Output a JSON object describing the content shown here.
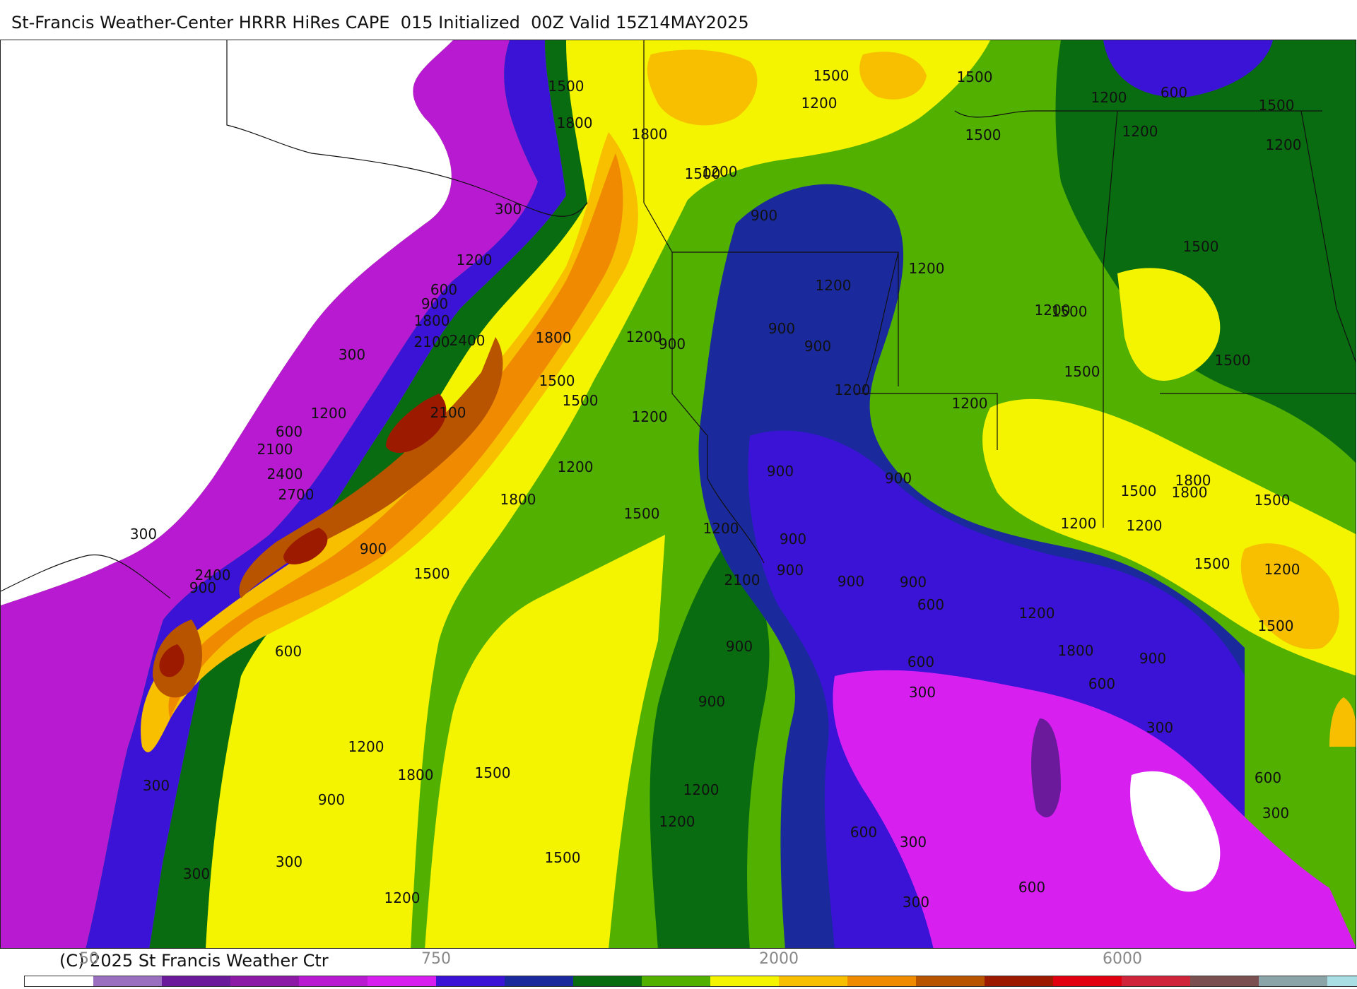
{
  "title": "St-Francis Weather-Center HRRR HiRes CAPE  015 Initialized  00Z Valid 15Z14MAY2025",
  "copyright": "(C) 2025 St Francis Weather Ctr",
  "legend_ticks": [
    "50",
    "750",
    "2000",
    "6000"
  ],
  "colorbar_colors": [
    "#ffffff",
    "#9a6fc0",
    "#6a1a9a",
    "#8c1aa6",
    "#b71ad0",
    "#d71ff0",
    "#3a13d6",
    "#1a2a9c",
    "#0a6c10",
    "#52b000",
    "#f4f400",
    "#f7bf00",
    "#f08a00",
    "#b85400",
    "#9c1a00",
    "#e10010",
    "#d0243a",
    "#7a5050",
    "#8aa4a8",
    "#a9dfe4"
  ],
  "contour_labels": [
    {
      "text": "1500"
    },
    {
      "text": "1800"
    },
    {
      "text": "1800"
    },
    {
      "text": "1500"
    },
    {
      "text": "1500"
    },
    {
      "text": "1200"
    },
    {
      "text": "1500"
    },
    {
      "text": "1200"
    },
    {
      "text": "600"
    },
    {
      "text": "1500"
    },
    {
      "text": "1200"
    },
    {
      "text": "1200"
    },
    {
      "text": "300"
    },
    {
      "text": "900"
    },
    {
      "text": "1200"
    },
    {
      "text": "1200"
    },
    {
      "text": "1500"
    },
    {
      "text": "1200"
    },
    {
      "text": "600"
    },
    {
      "text": "900"
    },
    {
      "text": "1800"
    },
    {
      "text": "1200"
    },
    {
      "text": "1500"
    },
    {
      "text": "900"
    },
    {
      "text": "1500"
    },
    {
      "text": "1200"
    },
    {
      "text": "900"
    },
    {
      "text": "2100"
    },
    {
      "text": "2400"
    },
    {
      "text": "1800"
    },
    {
      "text": "300"
    },
    {
      "text": "1200"
    },
    {
      "text": "1500"
    },
    {
      "text": "900"
    },
    {
      "text": "1200"
    },
    {
      "text": "1500"
    },
    {
      "text": "1500"
    },
    {
      "text": "1200"
    },
    {
      "text": "2100"
    },
    {
      "text": "600"
    },
    {
      "text": "1200"
    },
    {
      "text": "1200"
    },
    {
      "text": "2100"
    },
    {
      "text": "1500"
    },
    {
      "text": "2400"
    },
    {
      "text": "1800"
    },
    {
      "text": "900"
    },
    {
      "text": "1500"
    },
    {
      "text": "2700"
    },
    {
      "text": "1200"
    },
    {
      "text": "1800"
    },
    {
      "text": "900"
    },
    {
      "text": "1800"
    },
    {
      "text": "1500"
    },
    {
      "text": "1200"
    },
    {
      "text": "1500"
    },
    {
      "text": "300"
    },
    {
      "text": "1200"
    },
    {
      "text": "1200"
    },
    {
      "text": "900"
    },
    {
      "text": "1200"
    },
    {
      "text": "1500"
    },
    {
      "text": "1500"
    },
    {
      "text": "900"
    },
    {
      "text": "900"
    },
    {
      "text": "900"
    },
    {
      "text": "1500"
    },
    {
      "text": "2400"
    },
    {
      "text": "900"
    },
    {
      "text": "2100"
    },
    {
      "text": "900"
    },
    {
      "text": "1200"
    },
    {
      "text": "600"
    },
    {
      "text": "900"
    },
    {
      "text": "600"
    },
    {
      "text": "600"
    },
    {
      "text": "1800"
    },
    {
      "text": "600"
    },
    {
      "text": "900"
    },
    {
      "text": "300"
    },
    {
      "text": "300"
    },
    {
      "text": "1200"
    },
    {
      "text": "900"
    },
    {
      "text": "1800"
    },
    {
      "text": "300"
    },
    {
      "text": "1500"
    },
    {
      "text": "600"
    },
    {
      "text": "900"
    },
    {
      "text": "1200"
    },
    {
      "text": "300"
    },
    {
      "text": "1200"
    },
    {
      "text": "600"
    },
    {
      "text": "300"
    },
    {
      "text": "1500"
    },
    {
      "text": "300"
    },
    {
      "text": "300"
    },
    {
      "text": "600"
    },
    {
      "text": "1200"
    },
    {
      "text": "300"
    }
  ]
}
